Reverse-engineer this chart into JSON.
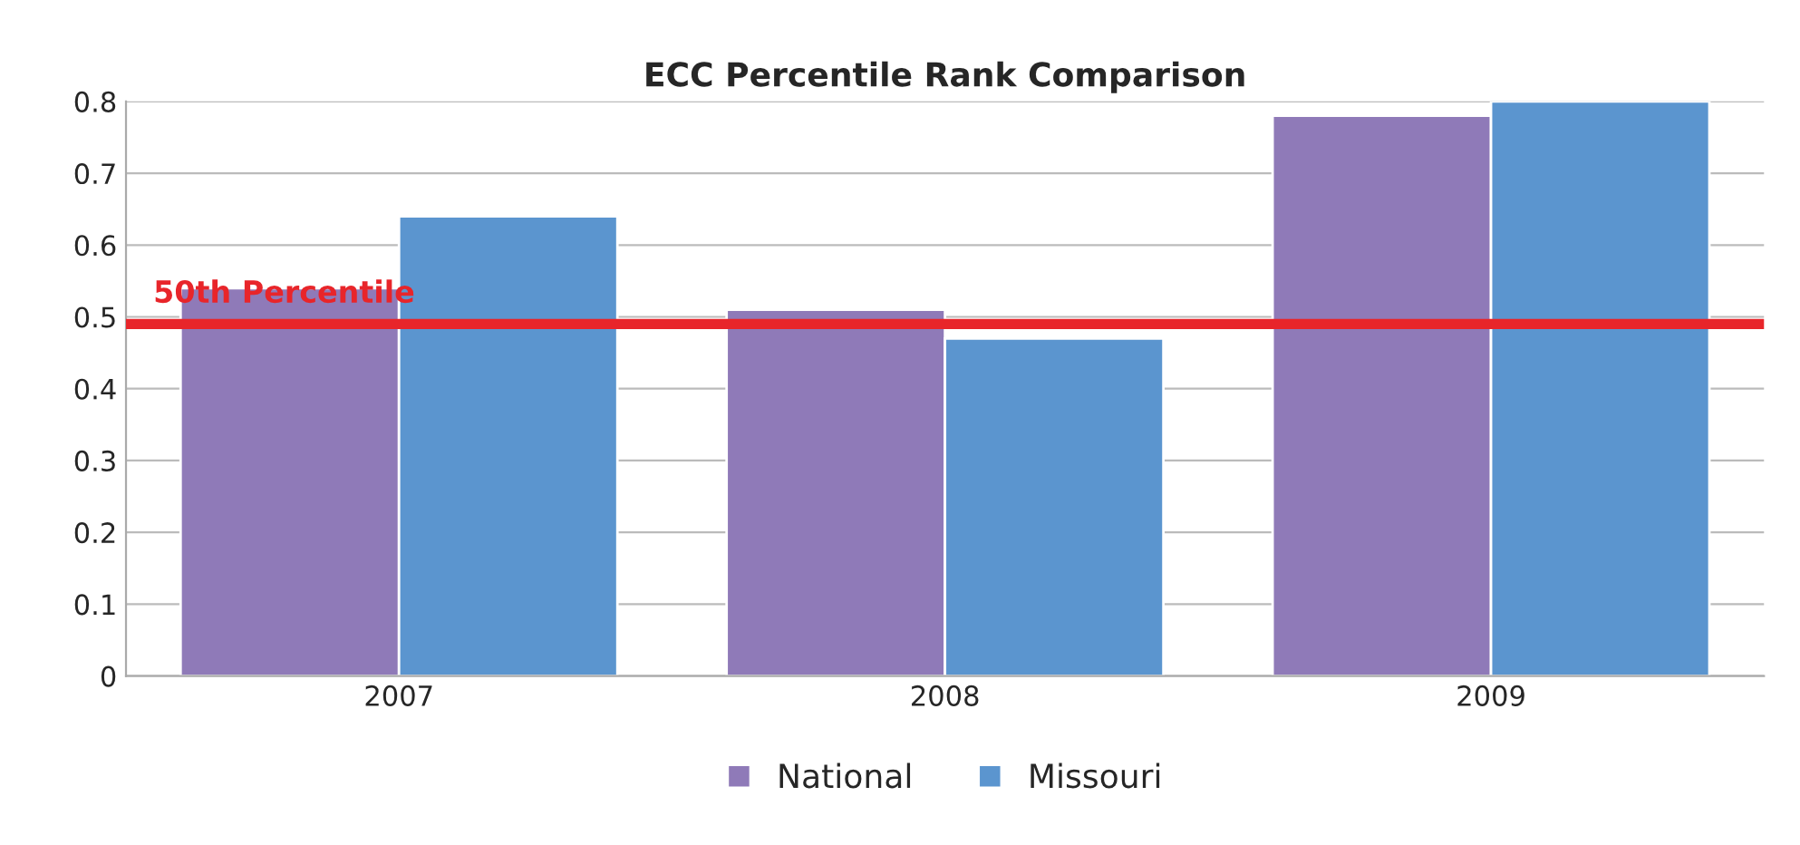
{
  "chart_data": {
    "type": "bar",
    "title": "ECC Percentile Rank Comparison",
    "categories": [
      "2007",
      "2008",
      "2009"
    ],
    "series": [
      {
        "name": "National",
        "color": "#8f7ab8",
        "values": [
          0.54,
          0.51,
          0.78
        ]
      },
      {
        "name": "Missouri",
        "color": "#5b95cf",
        "values": [
          0.64,
          0.47,
          0.8
        ]
      }
    ],
    "ylim": [
      0,
      0.8
    ],
    "yticks": [
      0,
      0.1,
      0.2,
      0.3,
      0.4,
      0.5,
      0.6,
      0.7,
      0.8
    ],
    "grid": "y",
    "legend": "bottom",
    "ref_lines": [
      {
        "axis": "y",
        "value": 0.49,
        "label": "50th Percentile",
        "color": "#e8252a"
      }
    ]
  }
}
